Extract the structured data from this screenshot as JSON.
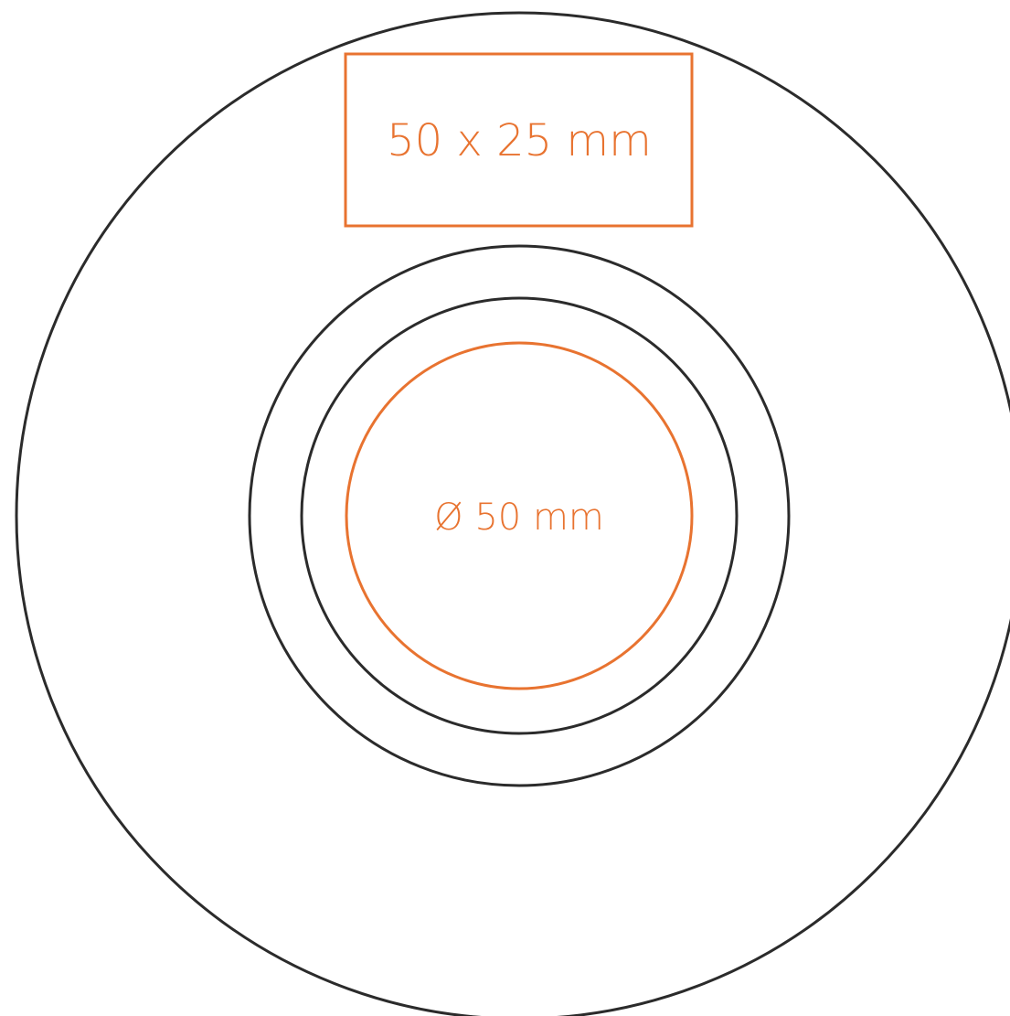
{
  "diagram": {
    "rect_label": "50 x 25 mm",
    "circle_label": "Ø 50 mm"
  },
  "colors": {
    "outline": "#2b2b2b",
    "accent": "#e87330",
    "background": "#ffffff"
  }
}
